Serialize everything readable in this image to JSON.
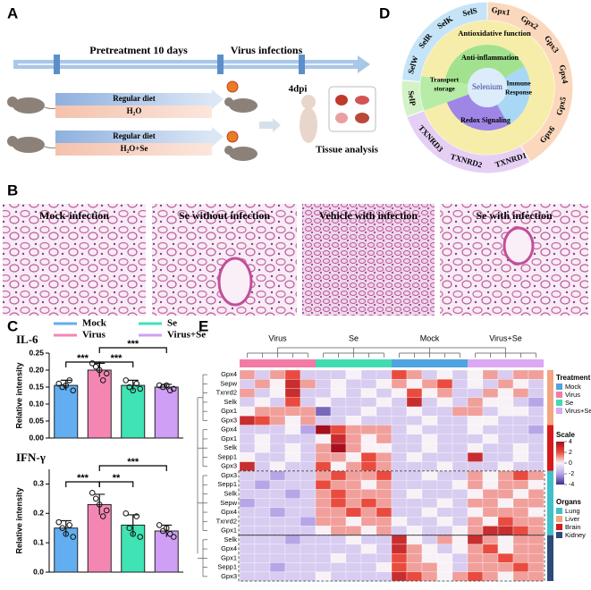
{
  "panel_a": {
    "label": "A",
    "pretreatment": "Pretreatment 10 days",
    "infection": "Virus infections",
    "groups": [
      {
        "diet": "Regular diet",
        "water": "H₂O"
      },
      {
        "diet": "Regular diet",
        "water": "H₂O+Se"
      }
    ],
    "timepoint": "4dpi",
    "analysis": "Tissue analysis"
  },
  "panel_b": {
    "label": "B",
    "images": [
      "Mock-infection",
      "Se without infection",
      "Vehicle with infection",
      "Se with infection"
    ]
  },
  "panel_c": {
    "label": "C"
  },
  "panel_d": {
    "label": "D",
    "center": "Selenium",
    "antioxidative": "Antioxidative function",
    "transport": [
      "Transport",
      "storage"
    ],
    "redox": "Redox Signaling",
    "inflammation": "Anti-inflammation",
    "immune": [
      "Immune",
      "Response"
    ],
    "selenoproteins": [
      "Gpx1",
      "Gpx2",
      "Gpx3",
      "Gpx4",
      "Gpx5",
      "Gpx6",
      "TXNRD1",
      "TXNRD2",
      "TXNRD3",
      "SelP",
      "SelW",
      "SelR",
      "SelK",
      "SelS"
    ]
  },
  "panel_e": {
    "label": "E"
  },
  "chart_data": [
    {
      "type": "bar",
      "title": "IL-6",
      "ylabel": "Relative intensity",
      "ylim": [
        0,
        0.25
      ],
      "yticks": [
        {
          "value": 0,
          "label": "0.00"
        },
        0.05,
        {
          "value": 0.1,
          "label": "0.10"
        },
        0.15,
        {
          "value": 0.2,
          "label": "0.20"
        },
        0.25
      ],
      "series": [
        {
          "name": "Mock",
          "color": "#62aef0",
          "values": [
            0.155
          ],
          "errors": [
            0.015
          ],
          "points": [
            0.16,
            0.14,
            0.15,
            0.17,
            0.155
          ]
        },
        {
          "name": "Virus",
          "color": "#f486b4",
          "values": [
            0.2
          ],
          "errors": [
            0.02
          ],
          "points": [
            0.22,
            0.19,
            0.21,
            0.17,
            0.2
          ]
        },
        {
          "name": "Se",
          "color": "#3fe3b4",
          "values": [
            0.155
          ],
          "errors": [
            0.015
          ],
          "points": [
            0.17,
            0.145,
            0.15,
            0.16,
            0.14
          ]
        },
        {
          "name": "Virus+Se",
          "color": "#cf9ef5",
          "values": [
            0.15
          ],
          "errors": [
            0.008
          ],
          "points": [
            0.155,
            0.145,
            0.15,
            0.14,
            0.155
          ]
        }
      ],
      "annotations": [
        "***",
        "***",
        "***"
      ]
    },
    {
      "type": "bar",
      "title": "IFN-γ",
      "ylabel": "Relative intensity",
      "ylim": [
        0,
        0.35
      ],
      "yticks": [
        {
          "value": 0,
          "label": "0.0"
        },
        0.1,
        0.2,
        0.3
      ],
      "series": [
        {
          "color": "#62aef0",
          "values": [
            0.15
          ],
          "errors": [
            0.025
          ],
          "points": [
            0.17,
            0.12,
            0.15,
            0.16,
            0.13
          ]
        },
        {
          "color": "#f486b4",
          "values": [
            0.23
          ],
          "errors": [
            0.035
          ],
          "points": [
            0.27,
            0.21,
            0.25,
            0.19,
            0.23
          ]
        },
        {
          "color": "#3fe3b4",
          "values": [
            0.16
          ],
          "errors": [
            0.035
          ],
          "points": [
            0.2,
            0.12,
            0.15,
            0.19,
            0.13
          ]
        },
        {
          "color": "#cf9ef5",
          "values": [
            0.14
          ],
          "errors": [
            0.02
          ],
          "points": [
            0.16,
            0.12,
            0.14,
            0.13,
            0.15
          ]
        }
      ],
      "annotations": [
        "***",
        "**",
        "***"
      ]
    },
    {
      "type": "heatmap",
      "column_groups": [
        {
          "name": "Mock",
          "color": "#4ea3e0"
        },
        {
          "name": "Virus",
          "color": "#f47aa6"
        },
        {
          "name": "Se",
          "color": "#41dbb1"
        },
        {
          "name": "Virus+Se",
          "color": "#dba8f3"
        }
      ],
      "columns": [
        1,
        1,
        1,
        1,
        1,
        2,
        2,
        2,
        2,
        2,
        0,
        0,
        0,
        0,
        0,
        3,
        3,
        3,
        3,
        3
      ],
      "rows": [
        "Gpx4",
        "Sepw",
        "Txnrd2",
        "Selk",
        "Gpx1",
        "Gpx3",
        "Gpx4",
        "Gpx1",
        "Selk",
        "Sepp1",
        "Gpx3",
        "Gpx3",
        "Sepp1",
        "Selk",
        "Sepw",
        "Gpx4",
        "Txnrd2",
        "Gpx1",
        "Selk",
        "Gpx4",
        "Gpx1",
        "Sepp1",
        "Gpx3"
      ],
      "organs": [
        {
          "name": "Lung",
          "color": "#3fc1c9"
        },
        {
          "name": "Liver",
          "color": "#f4a582"
        },
        {
          "name": "Brain",
          "color": "#d7191c"
        },
        {
          "name": "Kidney",
          "color": "#2c4a7a"
        }
      ],
      "row_organ": [
        1,
        1,
        1,
        1,
        1,
        1,
        2,
        2,
        2,
        2,
        2,
        0,
        0,
        0,
        0,
        0,
        0,
        0,
        3,
        3,
        3,
        3,
        3
      ],
      "values": [
        [
          1,
          -1,
          1,
          2,
          -1,
          -1,
          -1,
          0,
          -1,
          -1,
          2,
          1,
          -1,
          0,
          -1,
          0,
          1,
          -1,
          1,
          1
        ],
        [
          -1,
          1,
          0,
          3,
          1,
          -1,
          0,
          -1,
          -1,
          0,
          1,
          0,
          1,
          2,
          -1,
          0,
          -1,
          1,
          0,
          -1
        ],
        [
          1,
          -1,
          0,
          3,
          -1,
          -1,
          0,
          -1,
          0,
          -1,
          0,
          2,
          0,
          1,
          -1,
          -1,
          1,
          0,
          1,
          -1
        ],
        [
          -1,
          0,
          -1,
          2,
          -1,
          0,
          -1,
          -1,
          -1,
          0,
          -1,
          3,
          -1,
          0,
          -1,
          1,
          0,
          0,
          -1,
          -2
        ],
        [
          0,
          1,
          1,
          1,
          1,
          -3,
          -1,
          -1,
          0,
          -1,
          -1,
          0,
          -1,
          -1,
          1,
          1,
          -1,
          0,
          0,
          -1
        ],
        [
          3,
          2,
          1,
          0,
          1,
          -1,
          -1,
          0,
          -1,
          -1,
          -1,
          -1,
          0,
          -1,
          -1,
          0,
          0,
          -1,
          -1,
          -1
        ],
        [
          -1,
          -1,
          -1,
          0,
          -2,
          4,
          2,
          1,
          1,
          1,
          -1,
          0,
          -1,
          -1,
          -1,
          0,
          -1,
          -1,
          -1,
          -2
        ],
        [
          -1,
          0,
          -1,
          -1,
          -1,
          0,
          3,
          1,
          0,
          1,
          -1,
          -1,
          0,
          -1,
          -1,
          -1,
          0,
          -1,
          -1,
          -1
        ],
        [
          -1,
          0,
          -1,
          0,
          -1,
          1,
          4,
          1,
          0,
          0,
          -1,
          -1,
          0,
          -1,
          -1,
          0,
          -1,
          -1,
          0,
          -1
        ],
        [
          0,
          -1,
          -1,
          0,
          -1,
          1,
          1,
          0,
          2,
          1,
          -1,
          0,
          -1,
          -1,
          -1,
          3,
          -1,
          -1,
          0,
          -1
        ],
        [
          3,
          -1,
          0,
          -1,
          -1,
          2,
          0,
          1,
          2,
          1,
          -1,
          -1,
          -1,
          0,
          -1,
          -1,
          -1,
          0,
          -1,
          -1
        ],
        [
          -1,
          -1,
          -2,
          -1,
          -1,
          1,
          2,
          1,
          1,
          2,
          -1,
          -1,
          0,
          -1,
          -1,
          1,
          0,
          1,
          2,
          1
        ],
        [
          -1,
          -2,
          -1,
          -1,
          -1,
          2,
          1,
          1,
          0,
          1,
          -1,
          -1,
          -1,
          -1,
          0,
          1,
          0,
          1,
          1,
          0
        ],
        [
          -1,
          -1,
          -1,
          -2,
          -1,
          1,
          2,
          1,
          1,
          1,
          -1,
          0,
          -1,
          -1,
          -1,
          0,
          1,
          1,
          0,
          1
        ],
        [
          -2,
          -1,
          -1,
          -1,
          -1,
          1,
          2,
          1,
          2,
          1,
          -1,
          -1,
          -1,
          0,
          -1,
          1,
          1,
          0,
          1,
          1
        ],
        [
          -1,
          -1,
          -2,
          -1,
          -1,
          1,
          1,
          2,
          1,
          2,
          -1,
          -1,
          0,
          -1,
          -1,
          0,
          1,
          1,
          1,
          0
        ],
        [
          -1,
          -1,
          -1,
          -1,
          -2,
          1,
          1,
          0,
          1,
          1,
          0,
          -1,
          -1,
          0,
          -1,
          1,
          0,
          2,
          1,
          1
        ],
        [
          -1,
          -1,
          -1,
          -1,
          -1,
          0,
          1,
          1,
          0,
          1,
          -1,
          0,
          -1,
          -1,
          0,
          1,
          3,
          3,
          2,
          1
        ],
        [
          -1,
          -1,
          -1,
          -2,
          -1,
          -1,
          -1,
          0,
          -1,
          -1,
          3,
          0,
          -1,
          1,
          0,
          3,
          1,
          0,
          1,
          1
        ],
        [
          -1,
          -1,
          -1,
          -1,
          -1,
          -1,
          -1,
          -1,
          0,
          -1,
          3,
          1,
          0,
          -1,
          0,
          1,
          2,
          0,
          1,
          1
        ],
        [
          -1,
          -1,
          -1,
          -1,
          -1,
          -1,
          0,
          -1,
          -1,
          -1,
          2,
          1,
          0,
          0,
          -1,
          1,
          1,
          2,
          1,
          1
        ],
        [
          -1,
          -1,
          -2,
          -1,
          -1,
          -1,
          -1,
          -1,
          -1,
          0,
          2,
          1,
          1,
          0,
          -1,
          1,
          1,
          1,
          2,
          1
        ],
        [
          -1,
          -1,
          -1,
          -1,
          -1,
          0,
          -1,
          -1,
          -1,
          -1,
          3,
          2,
          1,
          0,
          1,
          2,
          1,
          0,
          1,
          1
        ]
      ],
      "zlim": [
        -4,
        4
      ],
      "zticks": [
        4,
        2,
        0,
        -2,
        -4
      ],
      "colorscale": [
        "#3b2c8c",
        "#b7a5e8",
        "#f8f2f7",
        "#ea4b3f",
        "#a5101e"
      ],
      "legend": {
        "treatment": "Treatment",
        "scale": "Scale",
        "organs": "Organs"
      }
    }
  ]
}
